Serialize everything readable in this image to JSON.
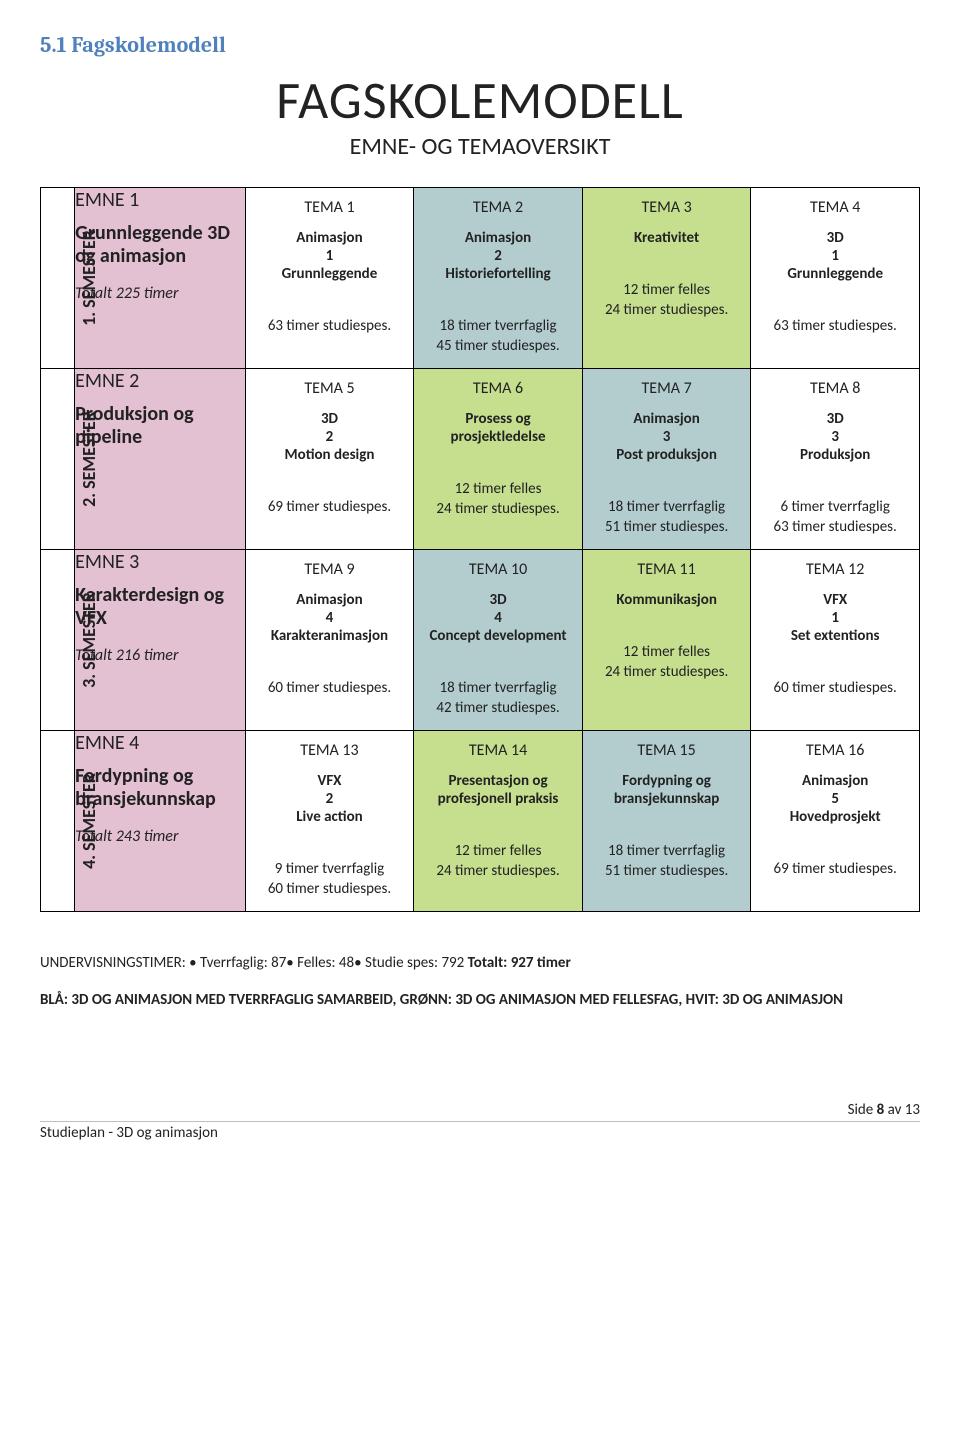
{
  "heading": "5.1 Fagskolemodell",
  "title": "FAGSKOLEMODELL",
  "subtitle": "EMNE- OG TEMAOVERSIKT",
  "colors": {
    "pink": "#e3c0d2",
    "blue": "#b3cdce",
    "green": "#c6df8f",
    "white": "#ffffff",
    "heading": "#4f81bd"
  },
  "semesters": [
    {
      "label": "1. SEMESTER",
      "emne": {
        "num": "EMNE 1",
        "title": "Grunnleggende 3D og animasjon",
        "total": "Totalt 225 timer",
        "bg": "pink"
      },
      "temas": [
        {
          "head": "TEMA 1",
          "body": "Animasjon 1 Grunnleggende",
          "foot1": "",
          "foot2": "63 timer studiespes.",
          "bg": "white"
        },
        {
          "head": "TEMA 2",
          "body": "Animasjon 2 Historiefortelling",
          "foot1": "18 timer tverrfaglig",
          "foot2": "45 timer studiespes.",
          "bg": "blue"
        },
        {
          "head": "TEMA 3",
          "body": "Kreativitet",
          "foot1": "12 timer felles",
          "foot2": "24 timer studiespes.",
          "bg": "green"
        },
        {
          "head": "TEMA 4",
          "body": "3D 1 Grunnleggende",
          "foot1": "",
          "foot2": "63 timer studiespes.",
          "bg": "white"
        }
      ]
    },
    {
      "label": "2. SEMESTER",
      "emne": {
        "num": "EMNE 2",
        "title": "Produksjon og pipeline",
        "total": "",
        "bg": "pink"
      },
      "temas": [
        {
          "head": "TEMA 5",
          "body": "3D 2 Motion design",
          "foot1": "",
          "foot2": "69 timer studiespes.",
          "bg": "white"
        },
        {
          "head": "TEMA 6",
          "body": "Prosess og prosjektledelse",
          "foot1": "12 timer felles",
          "foot2": "24 timer studiespes.",
          "bg": "green"
        },
        {
          "head": "TEMA 7",
          "body": "Animasjon 3 Post produksjon",
          "foot1": "18 timer tverrfaglig",
          "foot2": "51 timer studiespes.",
          "bg": "blue"
        },
        {
          "head": "TEMA 8",
          "body": "3D 3 Produksjon",
          "foot1": "6 timer tverrfaglig",
          "foot2": "63 timer studiespes.",
          "bg": "white"
        }
      ]
    },
    {
      "label": "3. SEMESTER",
      "emne": {
        "num": "EMNE 3",
        "title": "Karakterdesign og VFX",
        "total": "Totalt 216 timer",
        "bg": "pink"
      },
      "temas": [
        {
          "head": "TEMA 9",
          "body": "Animasjon 4 Karakteranimasjon",
          "foot1": "",
          "foot2": "60 timer studiespes.",
          "bg": "white"
        },
        {
          "head": "TEMA 10",
          "body": "3D 4 Concept development",
          "foot1": "18 timer tverrfaglig",
          "foot2": "42 timer studiespes.",
          "bg": "blue"
        },
        {
          "head": "TEMA 11",
          "body": "Kommunikasjon",
          "foot1": "12 timer felles",
          "foot2": "24 timer studiespes.",
          "bg": "green"
        },
        {
          "head": "TEMA 12",
          "body": "VFX 1 Set extentions",
          "foot1": "",
          "foot2": "60 timer studiespes.",
          "bg": "white"
        }
      ]
    },
    {
      "label": "4. SEMESTER",
      "emne": {
        "num": "EMNE 4",
        "title": "Fordypning og bransjekunnskap",
        "total": "Totalt 243 timer",
        "bg": "pink"
      },
      "temas": [
        {
          "head": "TEMA 13",
          "body": "VFX 2 Live action",
          "foot1": "9 timer tverrfaglig",
          "foot2": "60 timer studiespes.",
          "bg": "white"
        },
        {
          "head": "TEMA 14",
          "body": "Presentasjon og profesjonell praksis",
          "foot1": "12 timer felles",
          "foot2": "24 timer studiespes.",
          "bg": "green"
        },
        {
          "head": "TEMA 15",
          "body": "Fordypning og bransjekunnskap",
          "foot1": "18 timer tverrfaglig",
          "foot2": "51 timer studiespes.",
          "bg": "blue"
        },
        {
          "head": "TEMA 16",
          "body": "Animasjon 5 Hovedprosjekt",
          "foot1": "",
          "foot2": "69 timer studiespes.",
          "bg": "white"
        }
      ]
    }
  ],
  "footnote1_prefix": "UNDERVISNINGSTIMER: • Tverrfaglig: 87• Felles: 48• Studie spes: 792 ",
  "footnote1_bold": "Totalt: 927 timer",
  "footnote2": "BLÅ: 3D OG ANIMASJON MED TVERRFAGLIG SAMARBEID, GRØNN: 3D OG ANIMASJON MED FELLESFAG, HVIT: 3D OG ANIMASJON",
  "footer_doc": "Studieplan - 3D og animasjon",
  "footer_page_prefix": "Side ",
  "footer_page_num": "8",
  "footer_page_mid": " av ",
  "footer_page_total": "13"
}
